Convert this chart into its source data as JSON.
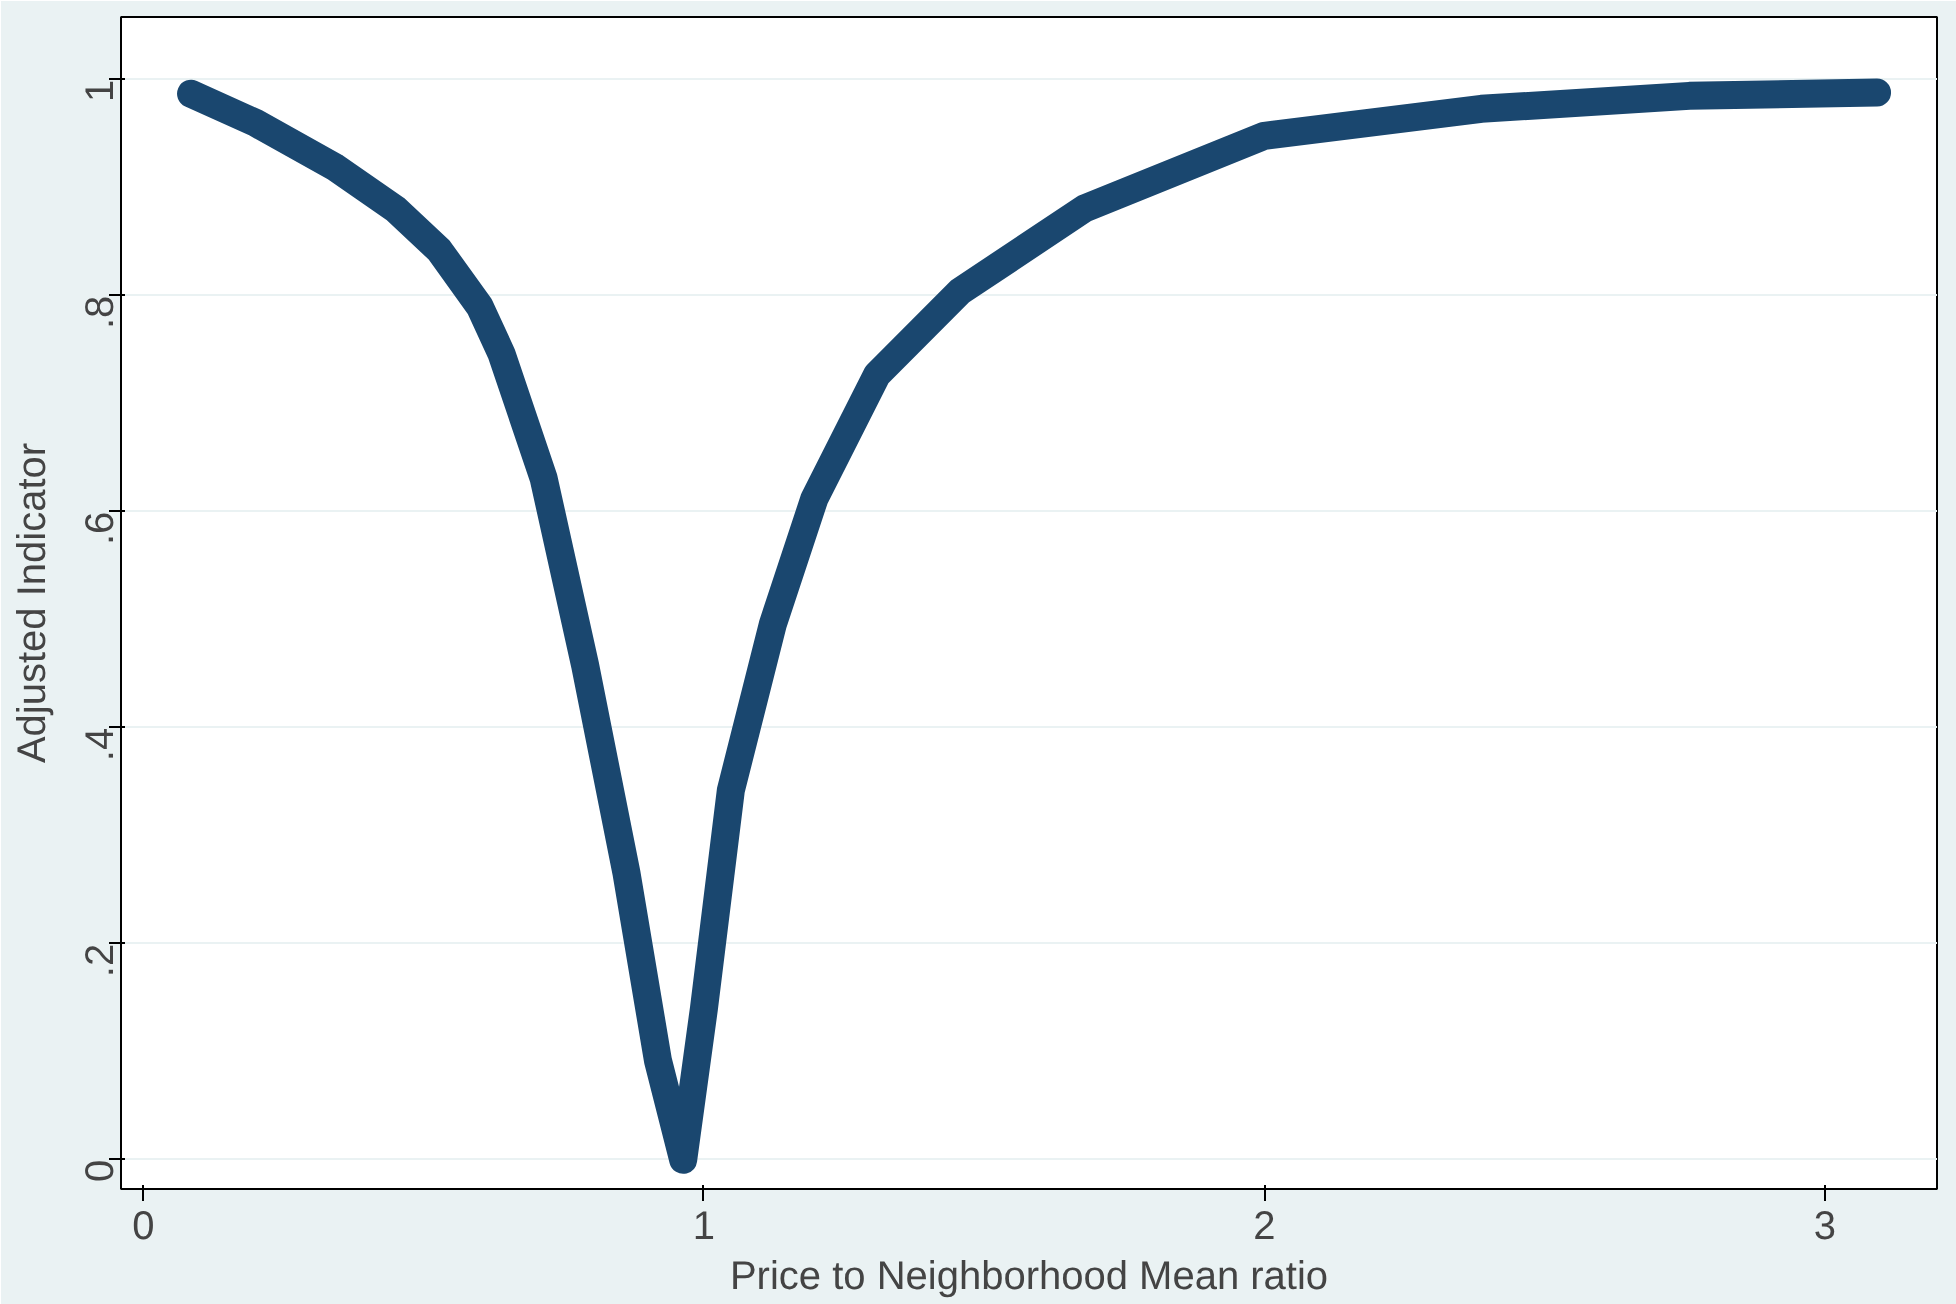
{
  "chart_data": {
    "type": "line",
    "xlabel": "Price to Neighborhood Mean ratio",
    "ylabel": "Adjusted Indicator",
    "xlim": [
      -0.04,
      3.2
    ],
    "ylim": [
      -0.027,
      1.058
    ],
    "xticks": [
      0,
      1,
      2,
      3
    ],
    "yticks": [
      {
        "value": 0,
        "label": "0"
      },
      {
        "value": 0.2,
        "label": ".2"
      },
      {
        "value": 0.4,
        "label": ".4"
      },
      {
        "value": 0.6,
        "label": ".6"
      },
      {
        "value": 0.8,
        "label": ".8"
      },
      {
        "value": 1,
        "label": "1"
      }
    ],
    "grid": "y",
    "line_style": "solid",
    "series": [
      {
        "color": "#1a476f",
        "x": [
          0.085,
          0.2,
          0.342,
          0.45,
          0.528,
          0.6,
          0.639,
          0.714,
          0.788,
          0.862,
          0.918,
          0.963,
          1.0,
          1.048,
          1.123,
          1.197,
          1.309,
          1.457,
          1.68,
          2.0,
          2.387,
          2.758,
          3.093
        ],
        "values": [
          0.987,
          0.96,
          0.919,
          0.88,
          0.842,
          0.79,
          0.746,
          0.631,
          0.458,
          0.265,
          0.092,
          0.0,
          0.14,
          0.342,
          0.496,
          0.612,
          0.727,
          0.804,
          0.881,
          0.948,
          0.973,
          0.985,
          0.988
        ]
      }
    ]
  }
}
